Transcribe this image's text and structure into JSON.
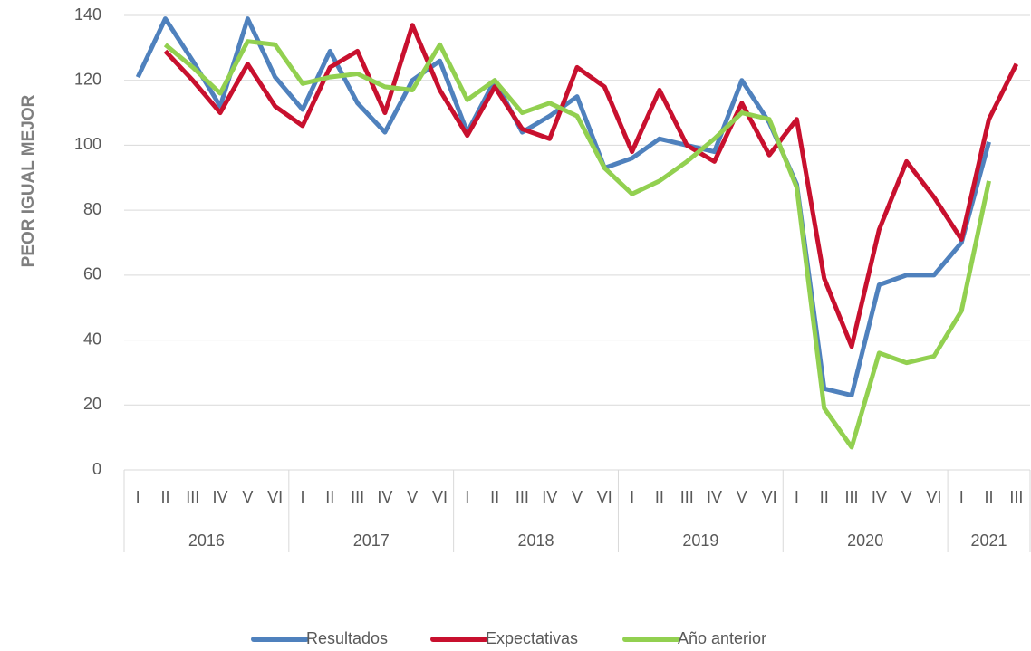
{
  "chart_data": {
    "type": "line",
    "y_axis_label": "PEOR  IGUAL MEJOR",
    "categories": [
      "I",
      "II",
      "III",
      "IV",
      "V",
      "VI",
      "I",
      "II",
      "III",
      "IV",
      "V",
      "VI",
      "I",
      "II",
      "III",
      "IV",
      "V",
      "VI",
      "I",
      "II",
      "III",
      "IV",
      "V",
      "VI",
      "I",
      "II",
      "III",
      "IV",
      "V",
      "VI",
      "I",
      "II",
      "III"
    ],
    "groups": [
      "2016",
      "2017",
      "2018",
      "2019",
      "2020",
      "2021"
    ],
    "series": [
      {
        "name": "Resultados",
        "color": "#4f81bd",
        "values": [
          121,
          139,
          126,
          112,
          139,
          121,
          111,
          129,
          113,
          104,
          120,
          126,
          104,
          120,
          104,
          109,
          115,
          93,
          96,
          102,
          100,
          98,
          120,
          107,
          88,
          25,
          23,
          57,
          60,
          60,
          70,
          101,
          null
        ]
      },
      {
        "name": "Expectativas",
        "color": "#c8102e",
        "values": [
          null,
          129,
          120,
          110,
          125,
          112,
          106,
          124,
          129,
          110,
          137,
          117,
          103,
          118,
          105,
          102,
          124,
          118,
          98,
          117,
          100,
          95,
          113,
          97,
          108,
          59,
          38,
          74,
          95,
          84,
          71,
          108,
          125
        ]
      },
      {
        "name": "Año anterior",
        "color": "#92d050",
        "values": [
          null,
          131,
          124,
          116,
          132,
          131,
          119,
          121,
          122,
          118,
          117,
          131,
          114,
          120,
          110,
          113,
          109,
          93,
          85,
          89,
          95,
          102,
          110,
          108,
          87,
          19,
          7,
          36,
          33,
          35,
          49,
          89,
          null
        ]
      }
    ],
    "ylim": [
      0,
      140
    ],
    "yticks": [
      0,
      20,
      40,
      60,
      80,
      100,
      120,
      140
    ],
    "grid": true,
    "legend": "bottom"
  }
}
